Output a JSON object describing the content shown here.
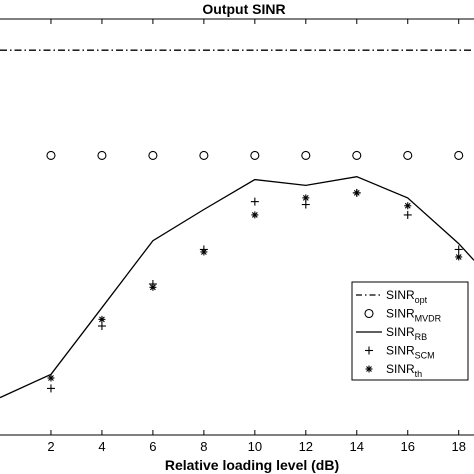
{
  "chart_data": {
    "type": "line",
    "title": "Output SINR",
    "xlabel": "Relative loading level (dB)",
    "ylabel": "",
    "xlim": [
      0,
      18.6
    ],
    "ylim": [
      0,
      1
    ],
    "x_ticks": [
      "2",
      "4",
      "6",
      "8",
      "10",
      "12",
      "14",
      "16",
      "18"
    ],
    "x_tick_values": [
      2,
      4,
      6,
      8,
      10,
      12,
      14,
      16,
      18
    ],
    "grid": false,
    "legend_position": "lower-right",
    "series": [
      {
        "name": "SINR_opt",
        "label_main": "SINR",
        "label_sub": "opt",
        "style": "dashdot",
        "marker": "none",
        "x": [
          0,
          18.6
        ],
        "y": [
          0.925,
          0.925
        ]
      },
      {
        "name": "SINR_MVDR",
        "label_main": "SINR",
        "label_sub": "MVDR",
        "style": "none",
        "marker": "circle",
        "x": [
          2,
          4,
          6,
          8,
          10,
          12,
          14,
          16,
          18
        ],
        "y": [
          0.672,
          0.672,
          0.672,
          0.672,
          0.672,
          0.672,
          0.672,
          0.672,
          0.672
        ]
      },
      {
        "name": "SINR_RB",
        "label_main": "SINR",
        "label_sub": "RB",
        "style": "solid",
        "marker": "none",
        "x": [
          0,
          2,
          4,
          6,
          8,
          10,
          12,
          14,
          16,
          18,
          18.6
        ],
        "y": [
          0.09,
          0.146,
          0.306,
          0.467,
          0.542,
          0.614,
          0.6,
          0.621,
          0.57,
          0.46,
          0.42
        ]
      },
      {
        "name": "SINR_SCM",
        "label_main": "SINR",
        "label_sub": "SCM",
        "style": "none",
        "marker": "plus",
        "x": [
          2,
          4,
          6,
          8,
          10,
          12,
          14,
          16,
          18
        ],
        "y": [
          0.112,
          0.262,
          0.363,
          0.446,
          0.561,
          0.554,
          0.582,
          0.529,
          0.446
        ]
      },
      {
        "name": "SINR_th",
        "label_main": "SINR",
        "label_sub": "th",
        "style": "none",
        "marker": "asterisk",
        "x": [
          2,
          4,
          6,
          8,
          10,
          12,
          14,
          16,
          18
        ],
        "y": [
          0.137,
          0.278,
          0.355,
          0.44,
          0.529,
          0.57,
          0.582,
          0.551,
          0.428
        ]
      }
    ]
  }
}
